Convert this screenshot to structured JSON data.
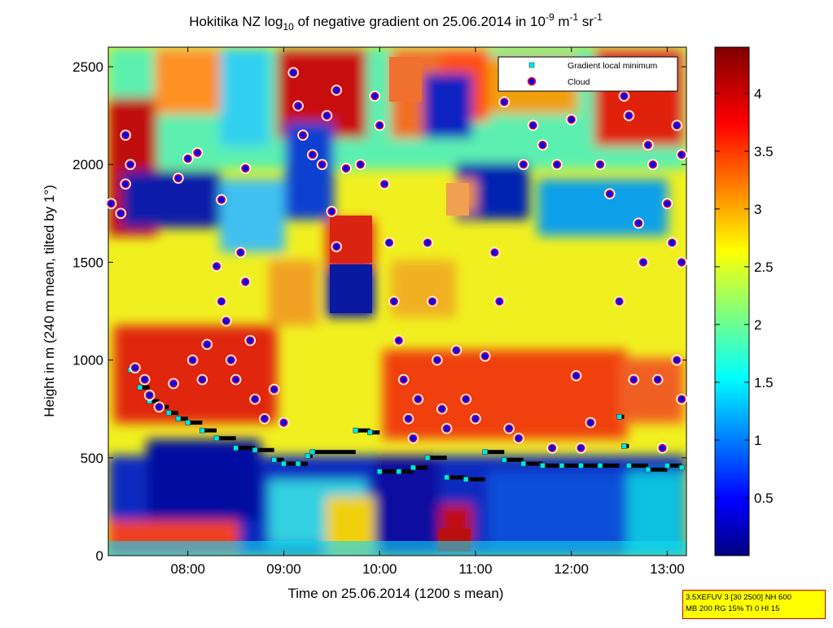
{
  "chart_data": {
    "type": "heatmap",
    "title": "Hokitika NZ log10 of negative gradient on 25.06.2014 in 10-9 m-1 sr-1",
    "title_parts": {
      "a": "Hokitika NZ log",
      "sub": "10",
      "b": " of negative gradient on 25.06.2014 in 10",
      "sup1": "-9",
      "c": " m",
      "sup2": "-1",
      "d": " sr",
      "sup3": "-1"
    },
    "xlabel": "Time on 25.06.2014 (1200 s mean)",
    "ylabel": "Height in m (240 m mean, tilted by 1°)",
    "x_ticks": [
      "08:00",
      "09:00",
      "10:00",
      "11:00",
      "12:00",
      "13:00"
    ],
    "x_tick_hours": [
      8,
      9,
      10,
      11,
      12,
      13
    ],
    "xlim_hours": [
      7.17,
      13.2
    ],
    "y_ticks": [
      0,
      500,
      1000,
      1500,
      2000,
      2500
    ],
    "ylim": [
      0,
      2600
    ],
    "colorbar": {
      "ticks": [
        0.5,
        1,
        1.5,
        2,
        2.5,
        3,
        3.5,
        4
      ],
      "tick_labels": [
        "0.5",
        "1",
        "1.5",
        "2",
        "2.5",
        "3",
        "3.5",
        "4"
      ],
      "range": [
        0,
        4.4
      ],
      "colormap": "jet"
    },
    "legend": {
      "placement": "top-right",
      "entries": [
        {
          "label": "Gradient local minimum",
          "marker": "square",
          "color": "#00e5e5"
        },
        {
          "label": "Cloud",
          "marker": "circle",
          "color": "#0000ff",
          "edge": "#ff0000"
        }
      ]
    },
    "gradient_minimum_points": [
      {
        "t": 7.4,
        "h": 950
      },
      {
        "t": 7.5,
        "h": 860
      },
      {
        "t": 7.6,
        "h": 790
      },
      {
        "t": 7.7,
        "h": 760
      },
      {
        "t": 7.8,
        "h": 730
      },
      {
        "t": 7.9,
        "h": 700
      },
      {
        "t": 8.0,
        "h": 680
      },
      {
        "t": 8.15,
        "h": 640
      },
      {
        "t": 8.3,
        "h": 600
      },
      {
        "t": 8.5,
        "h": 550
      },
      {
        "t": 8.7,
        "h": 540
      },
      {
        "t": 8.9,
        "h": 490
      },
      {
        "t": 9.0,
        "h": 470
      },
      {
        "t": 9.15,
        "h": 470
      },
      {
        "t": 9.25,
        "h": 510
      },
      {
        "t": 9.3,
        "h": 530
      },
      {
        "t": 9.75,
        "h": 640
      },
      {
        "t": 9.9,
        "h": 630
      },
      {
        "t": 10.0,
        "h": 430
      },
      {
        "t": 10.2,
        "h": 430
      },
      {
        "t": 10.35,
        "h": 450
      },
      {
        "t": 10.5,
        "h": 500
      },
      {
        "t": 10.7,
        "h": 400
      },
      {
        "t": 10.9,
        "h": 390
      },
      {
        "t": 11.1,
        "h": 530
      },
      {
        "t": 11.3,
        "h": 490
      },
      {
        "t": 11.5,
        "h": 470
      },
      {
        "t": 11.7,
        "h": 460
      },
      {
        "t": 11.9,
        "h": 460
      },
      {
        "t": 12.1,
        "h": 460
      },
      {
        "t": 12.3,
        "h": 460
      },
      {
        "t": 12.5,
        "h": 710
      },
      {
        "t": 12.55,
        "h": 560
      },
      {
        "t": 12.6,
        "h": 460
      },
      {
        "t": 12.8,
        "h": 440
      },
      {
        "t": 13.0,
        "h": 460
      },
      {
        "t": 13.15,
        "h": 450
      }
    ],
    "cloud_points": [
      {
        "t": 7.2,
        "h": 1800
      },
      {
        "t": 7.3,
        "h": 1750
      },
      {
        "t": 7.35,
        "h": 1900
      },
      {
        "t": 7.4,
        "h": 2000
      },
      {
        "t": 7.35,
        "h": 2150
      },
      {
        "t": 7.45,
        "h": 960
      },
      {
        "t": 7.55,
        "h": 900
      },
      {
        "t": 7.6,
        "h": 820
      },
      {
        "t": 7.7,
        "h": 760
      },
      {
        "t": 7.85,
        "h": 880
      },
      {
        "t": 7.9,
        "h": 1930
      },
      {
        "t": 8.0,
        "h": 2030
      },
      {
        "t": 8.1,
        "h": 2060
      },
      {
        "t": 8.05,
        "h": 1000
      },
      {
        "t": 8.15,
        "h": 900
      },
      {
        "t": 8.2,
        "h": 1080
      },
      {
        "t": 8.3,
        "h": 1480
      },
      {
        "t": 8.35,
        "h": 1300
      },
      {
        "t": 8.35,
        "h": 1820
      },
      {
        "t": 8.4,
        "h": 1200
      },
      {
        "t": 8.45,
        "h": 1000
      },
      {
        "t": 8.5,
        "h": 900
      },
      {
        "t": 8.55,
        "h": 1550
      },
      {
        "t": 8.6,
        "h": 1400
      },
      {
        "t": 8.6,
        "h": 1980
      },
      {
        "t": 8.65,
        "h": 1100
      },
      {
        "t": 8.7,
        "h": 800
      },
      {
        "t": 8.8,
        "h": 700
      },
      {
        "t": 8.9,
        "h": 850
      },
      {
        "t": 9.0,
        "h": 680
      },
      {
        "t": 9.1,
        "h": 2470
      },
      {
        "t": 9.15,
        "h": 2300
      },
      {
        "t": 9.2,
        "h": 2150
      },
      {
        "t": 9.3,
        "h": 2050
      },
      {
        "t": 9.4,
        "h": 2000
      },
      {
        "t": 9.45,
        "h": 2250
      },
      {
        "t": 9.55,
        "h": 2380
      },
      {
        "t": 9.5,
        "h": 1760
      },
      {
        "t": 9.55,
        "h": 1580
      },
      {
        "t": 9.65,
        "h": 1980
      },
      {
        "t": 9.8,
        "h": 2000
      },
      {
        "t": 9.95,
        "h": 2350
      },
      {
        "t": 10.0,
        "h": 2200
      },
      {
        "t": 10.05,
        "h": 1900
      },
      {
        "t": 10.1,
        "h": 1600
      },
      {
        "t": 10.15,
        "h": 1300
      },
      {
        "t": 10.2,
        "h": 1100
      },
      {
        "t": 10.25,
        "h": 900
      },
      {
        "t": 10.3,
        "h": 700
      },
      {
        "t": 10.35,
        "h": 600
      },
      {
        "t": 10.4,
        "h": 800
      },
      {
        "t": 10.5,
        "h": 1600
      },
      {
        "t": 10.55,
        "h": 1300
      },
      {
        "t": 10.6,
        "h": 1000
      },
      {
        "t": 10.65,
        "h": 750
      },
      {
        "t": 10.7,
        "h": 650
      },
      {
        "t": 10.8,
        "h": 1050
      },
      {
        "t": 10.9,
        "h": 800
      },
      {
        "t": 11.0,
        "h": 700
      },
      {
        "t": 11.1,
        "h": 1020
      },
      {
        "t": 11.2,
        "h": 1550
      },
      {
        "t": 11.25,
        "h": 1300
      },
      {
        "t": 11.3,
        "h": 2320
      },
      {
        "t": 11.35,
        "h": 650
      },
      {
        "t": 11.45,
        "h": 600
      },
      {
        "t": 11.5,
        "h": 2000
      },
      {
        "t": 11.6,
        "h": 2200
      },
      {
        "t": 11.7,
        "h": 2100
      },
      {
        "t": 11.8,
        "h": 550
      },
      {
        "t": 11.85,
        "h": 2000
      },
      {
        "t": 12.0,
        "h": 2230
      },
      {
        "t": 12.05,
        "h": 920
      },
      {
        "t": 12.1,
        "h": 550
      },
      {
        "t": 12.2,
        "h": 680
      },
      {
        "t": 12.3,
        "h": 2000
      },
      {
        "t": 12.4,
        "h": 1850
      },
      {
        "t": 12.5,
        "h": 1300
      },
      {
        "t": 12.55,
        "h": 2350
      },
      {
        "t": 12.6,
        "h": 2250
      },
      {
        "t": 12.65,
        "h": 900
      },
      {
        "t": 12.7,
        "h": 1700
      },
      {
        "t": 12.75,
        "h": 1500
      },
      {
        "t": 12.8,
        "h": 2100
      },
      {
        "t": 12.85,
        "h": 2000
      },
      {
        "t": 12.9,
        "h": 900
      },
      {
        "t": 12.95,
        "h": 550
      },
      {
        "t": 13.0,
        "h": 1800
      },
      {
        "t": 13.05,
        "h": 1600
      },
      {
        "t": 13.1,
        "h": 2200
      },
      {
        "t": 13.1,
        "h": 1000
      },
      {
        "t": 13.15,
        "h": 2050
      },
      {
        "t": 13.15,
        "h": 800
      },
      {
        "t": 13.15,
        "h": 1500
      }
    ]
  },
  "settings_box": {
    "line1": "3.5XEFUV 3 [30 2500] NH 600",
    "line2": "MB 200 RG 15% TI 0 HI 15"
  }
}
